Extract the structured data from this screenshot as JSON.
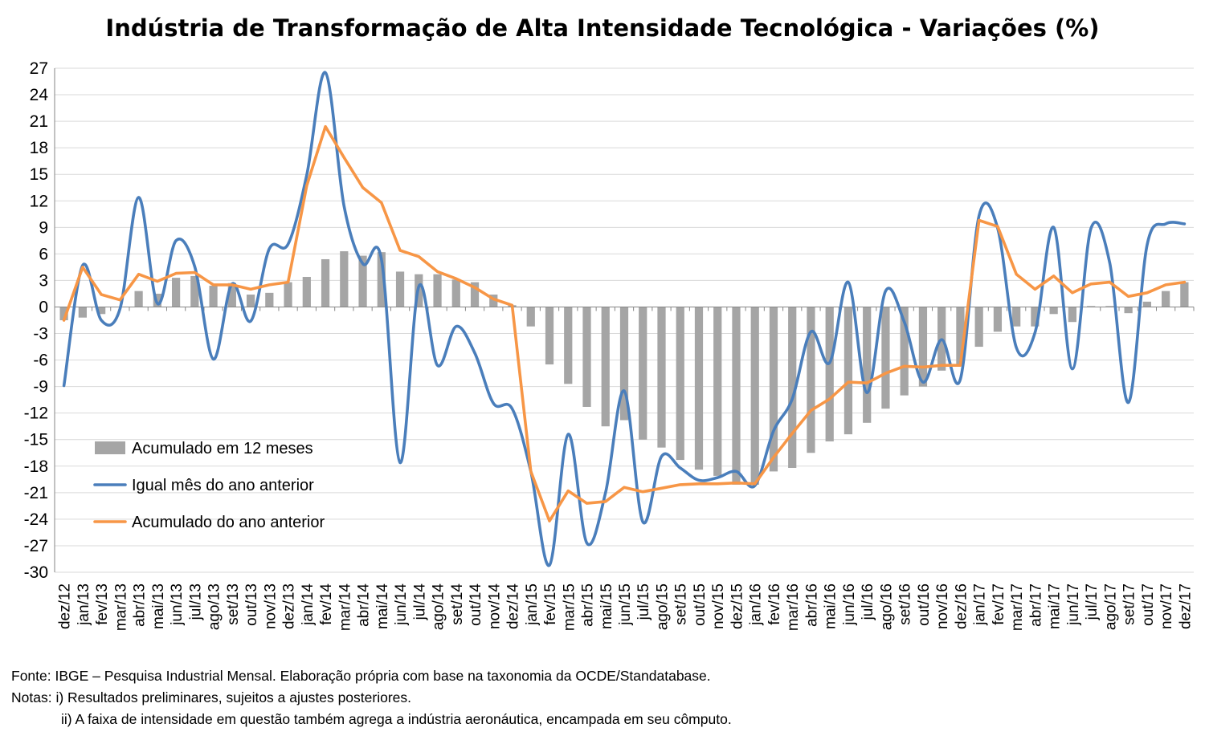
{
  "chart_data": {
    "type": "bar+line",
    "title": "Indústria de Transformação de Alta Intensidade Tecnológica - Variações (%)",
    "categories": [
      "dez/12",
      "jan/13",
      "fev/13",
      "mar/13",
      "abr/13",
      "mai/13",
      "jun/13",
      "jul/13",
      "ago/13",
      "set/13",
      "out/13",
      "nov/13",
      "dez/13",
      "jan/14",
      "fev/14",
      "mar/14",
      "abr/14",
      "mai/14",
      "jun/14",
      "jul/14",
      "ago/14",
      "set/14",
      "out/14",
      "nov/14",
      "dez/14",
      "jan/15",
      "fev/15",
      "mar/15",
      "abr/15",
      "mai/15",
      "jun/15",
      "jul/15",
      "ago/15",
      "set/15",
      "out/15",
      "nov/15",
      "dez/15",
      "jan/16",
      "fev/16",
      "mar/16",
      "abr/16",
      "mai/16",
      "jun/16",
      "jul/16",
      "ago/16",
      "set/16",
      "out/16",
      "nov/16",
      "dez/16",
      "jan/17",
      "fev/17",
      "mar/17",
      "abr/17",
      "mai/17",
      "jun/17",
      "jul/17",
      "ago/17",
      "set/17",
      "out/17",
      "nov/17",
      "dez/17"
    ],
    "ylim": [
      -30,
      27
    ],
    "yticks": [
      "27",
      "24",
      "21",
      "18",
      "15",
      "12",
      "9",
      "6",
      "3",
      "0",
      "-3",
      "-6",
      "-9",
      "-12",
      "-15",
      "-18",
      "-21",
      "-24",
      "-27",
      "-30"
    ],
    "grid": true,
    "legend_position": "bottom-left",
    "series": [
      {
        "name": "Acumulado em 12 meses",
        "type": "bar",
        "color": "#a5a5a5",
        "values": [
          -1.5,
          -1.2,
          -0.8,
          0.0,
          1.8,
          1.5,
          3.3,
          3.5,
          2.4,
          2.7,
          1.4,
          1.6,
          2.8,
          3.4,
          5.4,
          6.3,
          5.8,
          6.2,
          4.0,
          3.7,
          3.7,
          3.1,
          2.8,
          1.4,
          0.2,
          -2.2,
          -6.5,
          -8.7,
          -11.3,
          -13.5,
          -12.8,
          -15.0,
          -15.9,
          -17.3,
          -18.4,
          -19.1,
          -20.1,
          -20.1,
          -18.6,
          -18.2,
          -16.5,
          -15.2,
          -14.4,
          -13.1,
          -11.5,
          -10.0,
          -9.0,
          -7.2,
          -6.5,
          -4.5,
          -2.8,
          -2.2,
          -2.2,
          -0.8,
          -1.7,
          0.1,
          0.1,
          -0.7,
          0.6,
          1.8,
          2.8
        ]
      },
      {
        "name": "Igual mês do ano anterior",
        "type": "line",
        "color": "#4a7ebb",
        "values": [
          -8.9,
          4.7,
          -1.5,
          -0.2,
          12.4,
          0.4,
          7.5,
          4.6,
          -5.9,
          2.6,
          -1.6,
          6.6,
          7.1,
          14.9,
          26.5,
          11.4,
          4.9,
          5.4,
          -17.6,
          2.3,
          -6.6,
          -2.2,
          -5.2,
          -10.9,
          -11.5,
          -18.6,
          -29.2,
          -14.4,
          -26.7,
          -21.0,
          -9.5,
          -24.3,
          -16.9,
          -18.2,
          -19.6,
          -19.3,
          -18.6,
          -20.2,
          -14.0,
          -10.4,
          -2.8,
          -6.3,
          2.8,
          -9.7,
          1.8,
          -1.7,
          -8.5,
          -3.7,
          -8.2,
          10.3,
          8.9,
          -4.6,
          -2.9,
          9.0,
          -7.0,
          8.9,
          5.0,
          -10.8,
          7.0,
          9.4,
          9.4
        ]
      },
      {
        "name": "Acumulado do ano anterior",
        "type": "line",
        "color": "#f79646",
        "values": [
          -1.5,
          4.5,
          1.4,
          0.8,
          3.7,
          2.9,
          3.8,
          3.9,
          2.5,
          2.5,
          2.0,
          2.5,
          2.8,
          13.7,
          20.4,
          16.9,
          13.5,
          11.8,
          6.4,
          5.7,
          4.0,
          3.2,
          2.2,
          0.9,
          0.2,
          -18.6,
          -24.2,
          -20.8,
          -22.2,
          -22.0,
          -20.4,
          -20.9,
          -20.5,
          -20.1,
          -20.0,
          -20.0,
          -19.9,
          -20.0,
          -17.0,
          -14.3,
          -11.7,
          -10.4,
          -8.5,
          -8.6,
          -7.5,
          -6.7,
          -6.8,
          -6.6,
          -6.6,
          9.8,
          9.1,
          3.7,
          2.0,
          3.5,
          1.6,
          2.6,
          2.8,
          1.2,
          1.6,
          2.5,
          2.8
        ]
      }
    ]
  },
  "footer": {
    "source": "Fonte: IBGE – Pesquisa Industrial Mensal. Elaboração própria com base na taxonomia da OCDE/Standatabase.",
    "note1": "Notas: i) Resultados preliminares, sujeitos a ajustes posteriores.",
    "note2": "ii) A faixa de intensidade em questão também agrega a indústria aeronáutica, encampada em seu cômputo."
  }
}
